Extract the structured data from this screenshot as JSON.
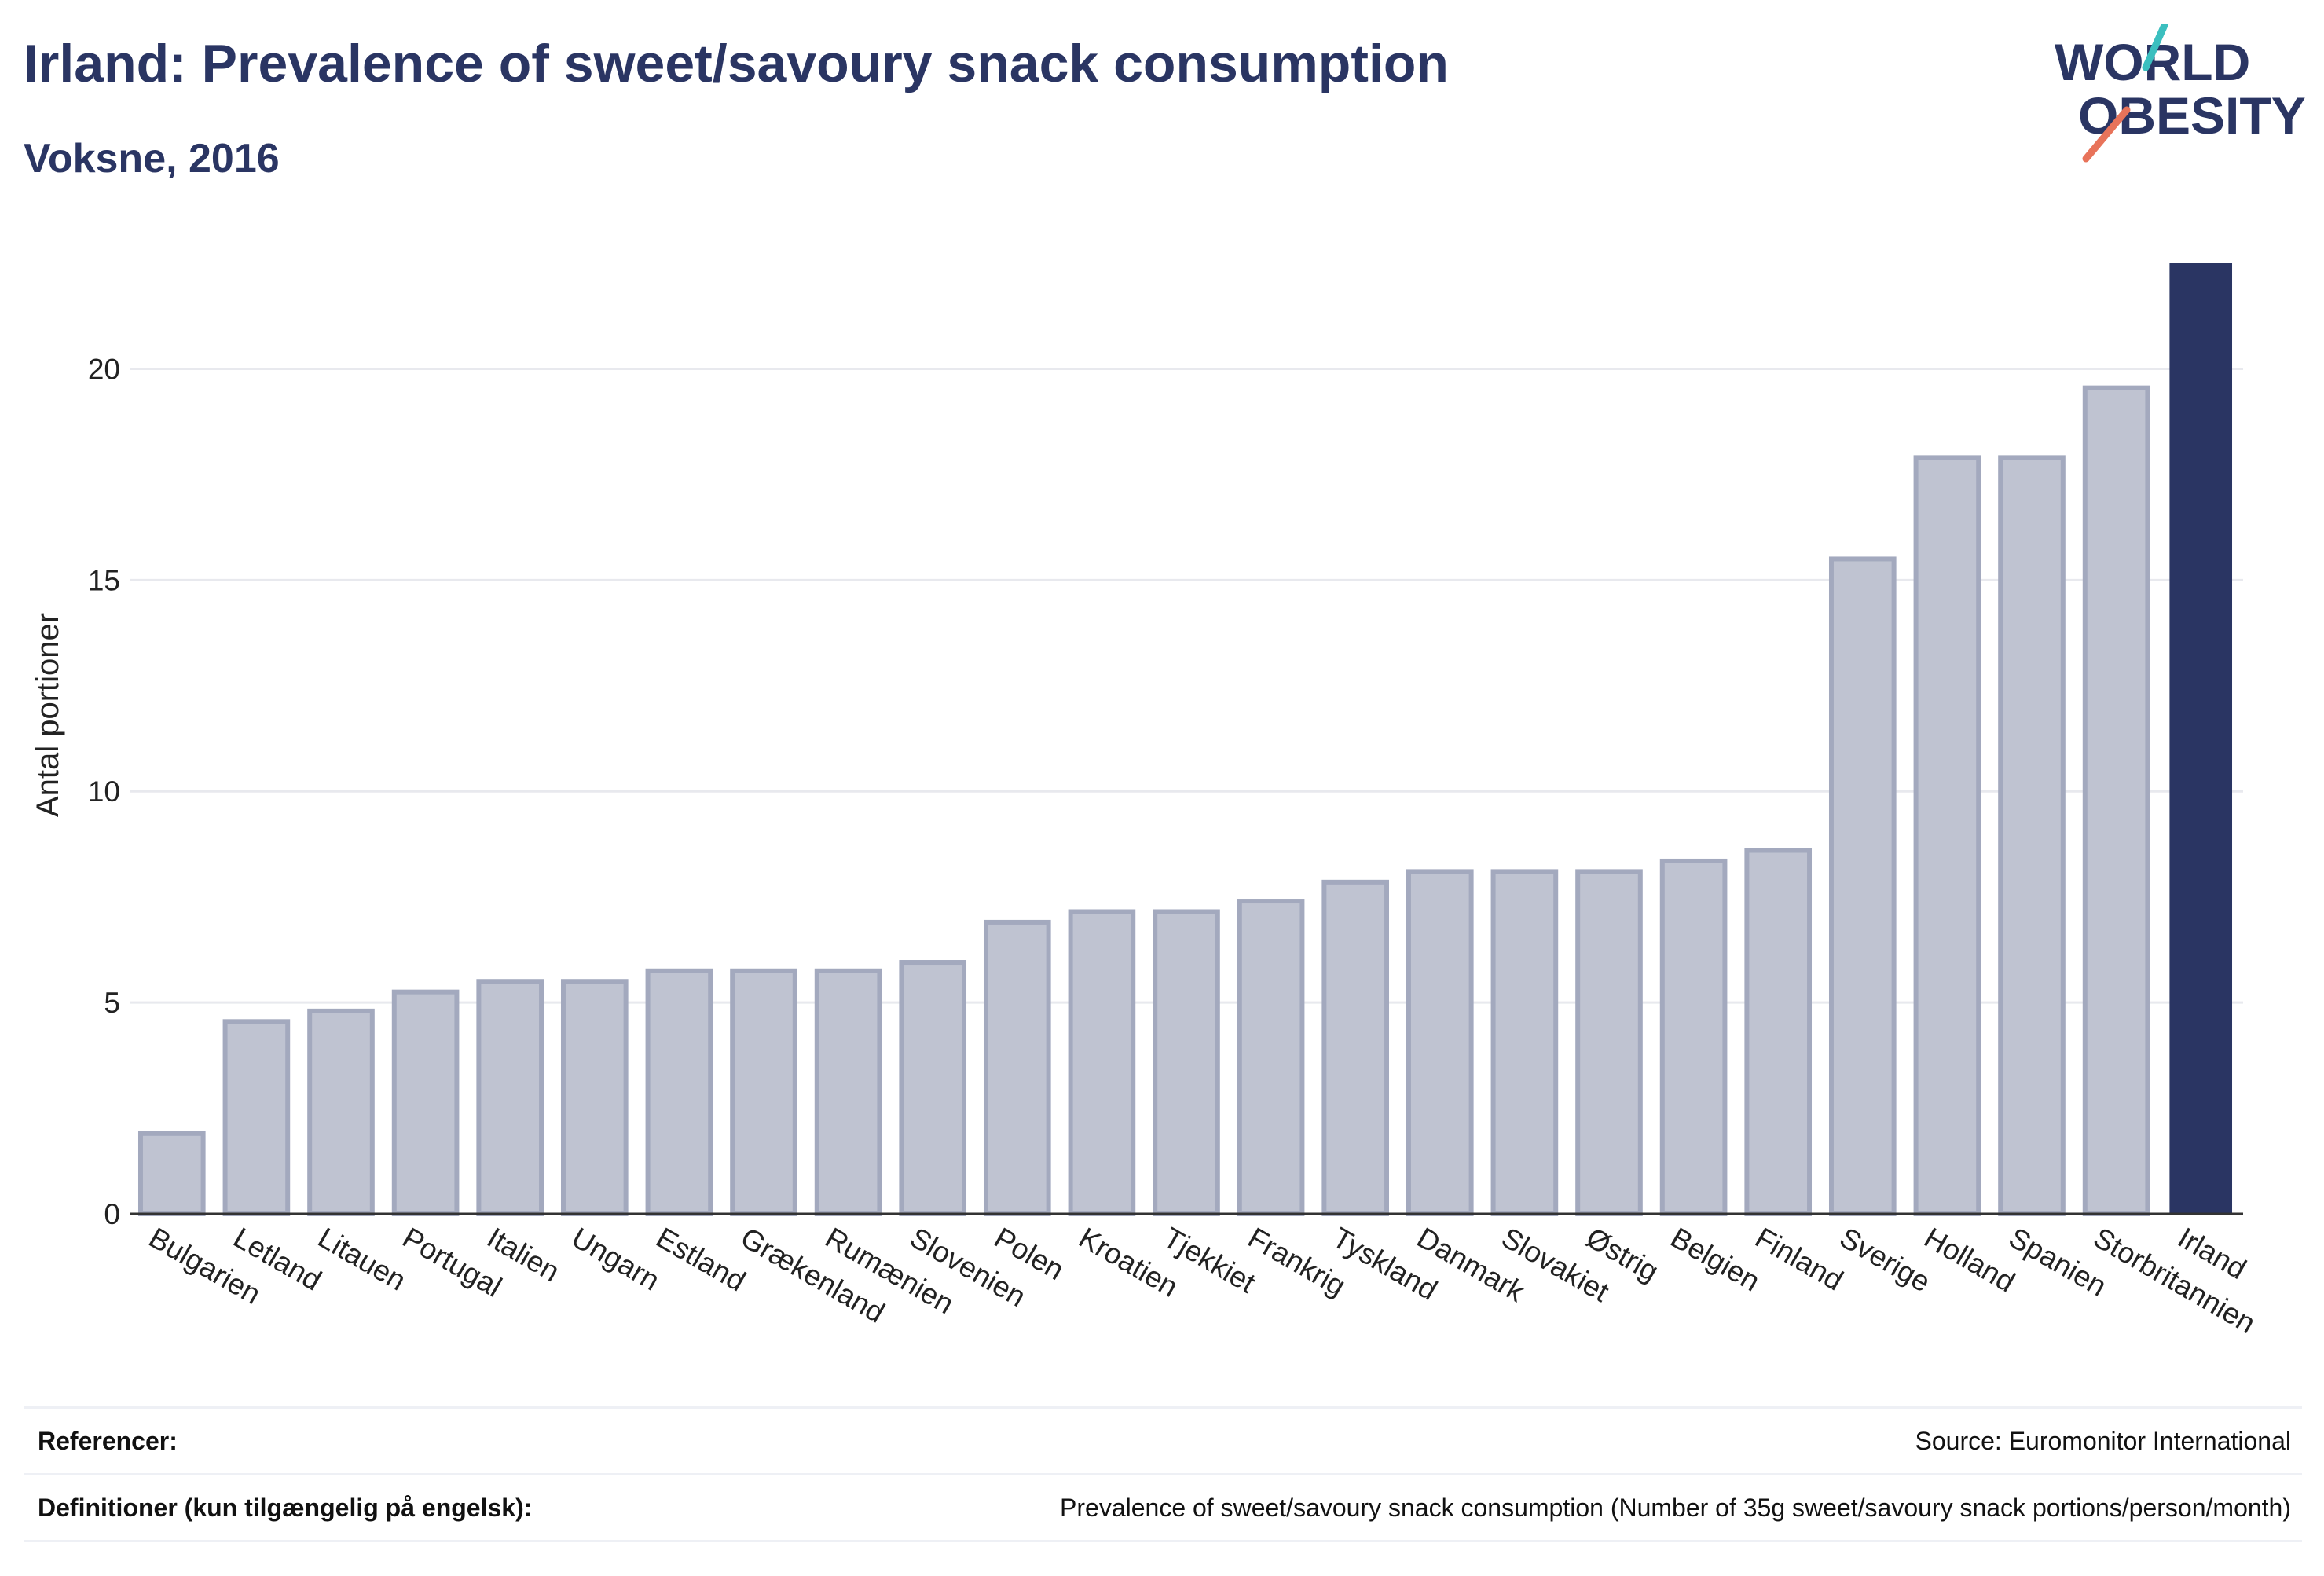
{
  "header": {
    "title": "Irland: Prevalence of sweet/savoury snack consumption",
    "subtitle": "Voksne, 2016"
  },
  "logo": {
    "line1": "WORLD",
    "line2": "OBESITY"
  },
  "colors": {
    "highlight_bar": "#2a3563",
    "other_bar_fill": "#bfc3d1",
    "other_bar_stroke": "#a3a9be",
    "title": "#2a3563",
    "grid": "#e8e9ee",
    "logo_teal": "#3bbfbf",
    "logo_coral": "#e8735a"
  },
  "chart_data": {
    "type": "bar",
    "title": "Irland: Prevalence of sweet/savoury snack consumption",
    "subtitle": "Voksne, 2016",
    "ylabel": "Antal portioner",
    "xlabel": "",
    "ylim": [
      0,
      22.5
    ],
    "yticks": [
      0,
      5,
      10,
      15,
      20
    ],
    "grid": true,
    "highlight": "Irland",
    "categories": [
      "Bulgarien",
      "Letland",
      "Litauen",
      "Portugal",
      "Italien",
      "Ungarn",
      "Estland",
      "Grækenland",
      "Rumænien",
      "Slovenien",
      "Polen",
      "Kroatien",
      "Tjekkiet",
      "Frankrig",
      "Tyskland",
      "Danmark",
      "Slovakiet",
      "Østrig",
      "Belgien",
      "Finland",
      "Sverige",
      "Holland",
      "Spanien",
      "Storbritannien",
      "Irland"
    ],
    "values": [
      1.9,
      4.55,
      4.8,
      5.25,
      5.5,
      5.5,
      5.75,
      5.75,
      5.75,
      5.95,
      6.9,
      7.15,
      7.15,
      7.4,
      7.85,
      8.1,
      8.1,
      8.1,
      8.35,
      8.6,
      15.5,
      17.9,
      17.9,
      19.55,
      22.5
    ]
  },
  "footer": {
    "references_label": "Referencer:",
    "references_value": "Source: Euromonitor International",
    "definitions_label": "Definitioner (kun tilgængelig på engelsk):",
    "definitions_value": "Prevalence of sweet/savoury snack consumption (Number of 35g sweet/savoury snack portions/person/month)"
  }
}
